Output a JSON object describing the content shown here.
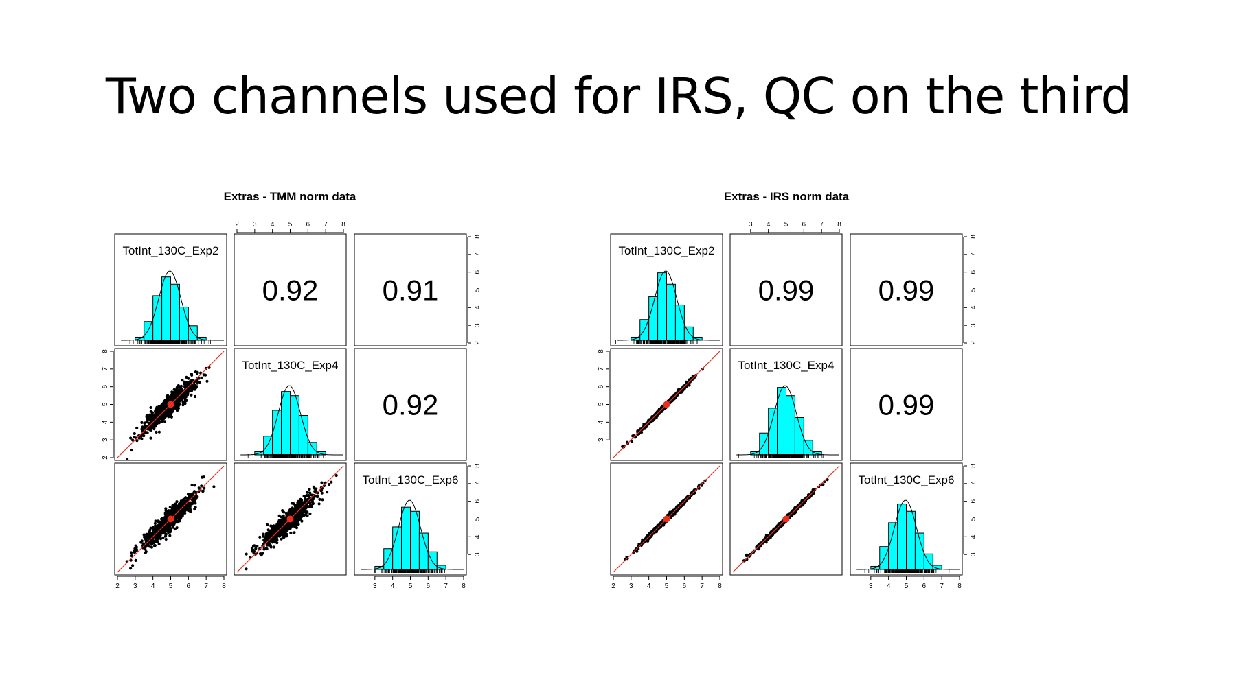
{
  "slide": {
    "title": "Two channels used for IRS, QC on the third"
  },
  "chart_data": [
    {
      "type": "scatter",
      "title": "Extras - TMM norm data",
      "variables": [
        "TotInt_130C_Exp2",
        "TotInt_130C_Exp4",
        "TotInt_130C_Exp6"
      ],
      "correlations": {
        "Exp2-Exp4": "0.92",
        "Exp2-Exp6": "0.91",
        "Exp4-Exp6": "0.92"
      },
      "axis_range": [
        2,
        8
      ],
      "ticks": {
        "top": [
          2,
          3,
          4,
          5,
          6,
          7,
          8
        ],
        "right_row1": [
          2,
          3,
          4,
          5,
          6,
          7,
          8
        ],
        "left_row2": [
          2,
          3,
          4,
          5,
          6,
          7,
          8
        ],
        "right_row3": [
          3,
          4,
          5,
          6,
          7,
          8
        ],
        "bottom_col1": [
          2,
          3,
          4,
          5,
          6,
          7,
          8
        ],
        "bottom_col3": [
          3,
          4,
          5,
          6,
          7,
          8
        ]
      },
      "histograms": {
        "TotInt_130C_Exp2": {
          "bins": [
            3.0,
            3.5,
            4.0,
            4.5,
            5.0,
            5.5,
            6.0,
            6.5,
            7.0
          ],
          "counts": [
            3,
            18,
            43,
            61,
            54,
            32,
            14,
            3
          ]
        },
        "TotInt_130C_Exp4": {
          "bins": [
            3.0,
            3.5,
            4.0,
            4.5,
            5.0,
            5.5,
            6.0,
            6.5,
            7.0
          ],
          "counts": [
            3,
            18,
            43,
            61,
            57,
            38,
            12,
            3
          ]
        },
        "TotInt_130C_Exp6": {
          "bins": [
            3.0,
            3.5,
            4.0,
            4.5,
            5.0,
            5.5,
            6.0,
            6.5,
            7.0
          ],
          "counts": [
            3,
            20,
            41,
            60,
            56,
            35,
            17,
            4
          ]
        }
      },
      "scatter_spread": 0.4,
      "smooth_center": [
        5.0,
        5.0
      ],
      "smooth_color": "#e8301c",
      "hist_color": "#00ffff"
    },
    {
      "type": "scatter",
      "title": "Extras - IRS norm data",
      "variables": [
        "TotInt_130C_Exp2",
        "TotInt_130C_Exp4",
        "TotInt_130C_Exp6"
      ],
      "correlations": {
        "Exp2-Exp4": "0.99",
        "Exp2-Exp6": "0.99",
        "Exp4-Exp6": "0.99"
      },
      "axis_range": [
        2,
        8
      ],
      "ticks": {
        "top": [
          3,
          4,
          5,
          6,
          7,
          8
        ],
        "right_row1": [
          2,
          3,
          4,
          5,
          6,
          7,
          8
        ],
        "left_row2": [
          3,
          4,
          5,
          6,
          7,
          8
        ],
        "right_row3": [
          3,
          4,
          5,
          6,
          7,
          8
        ],
        "bottom_col1": [
          2,
          3,
          4,
          5,
          6,
          7,
          8
        ],
        "bottom_col3": [
          3,
          4,
          5,
          6,
          7,
          8
        ]
      },
      "histograms": {
        "TotInt_130C_Exp2": {
          "bins": [
            3.0,
            3.5,
            4.0,
            4.5,
            5.0,
            5.5,
            6.0,
            6.5,
            7.0
          ],
          "counts": [
            3,
            20,
            42,
            65,
            54,
            34,
            13,
            3
          ]
        },
        "TotInt_130C_Exp4": {
          "bins": [
            3.0,
            3.5,
            4.0,
            4.5,
            5.0,
            5.5,
            6.0,
            6.5,
            7.0
          ],
          "counts": [
            3,
            21,
            45,
            65,
            57,
            36,
            14,
            3
          ]
        },
        "TotInt_130C_Exp6": {
          "bins": [
            3.0,
            3.5,
            4.0,
            4.5,
            5.0,
            5.5,
            6.0,
            6.5,
            7.0
          ],
          "counts": [
            3,
            22,
            45,
            63,
            56,
            35,
            15,
            4
          ]
        }
      },
      "scatter_spread": 0.08,
      "smooth_center": [
        5.0,
        5.0
      ],
      "smooth_color": "#e8301c",
      "hist_color": "#00ffff"
    }
  ]
}
